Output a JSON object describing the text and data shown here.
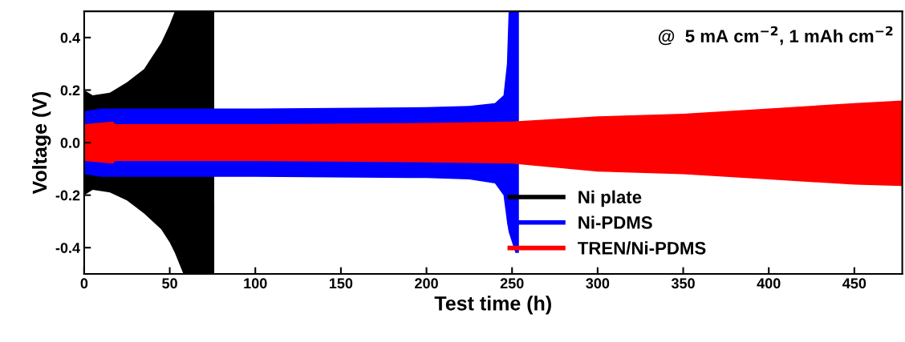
{
  "chart_data": {
    "type": "line",
    "xlabel": "Test time (h)",
    "ylabel": "Voltage (V)",
    "annotations": [
      "@  5 mA cm$^{−2}$, 1 mAh cm$^{−2}$"
    ],
    "xlim": [
      0,
      478
    ],
    "xticks": [
      0,
      50,
      100,
      150,
      200,
      250,
      300,
      350,
      400,
      450
    ],
    "ylim": [
      -0.5,
      0.5
    ],
    "yticks": [
      {
        "value": -0.4,
        "label": "-0.4"
      },
      {
        "value": -0.2,
        "label": "-0.2"
      },
      {
        "value": 0,
        "label": "0.0"
      },
      {
        "value": 0.2,
        "label": "0.2"
      },
      {
        "value": 0.4,
        "label": "0.4"
      }
    ],
    "grid": false,
    "legend": "bottom right",
    "series": [
      {
        "name": "Ni plate",
        "color": "#000000",
        "x": [
          0,
          5,
          15,
          25,
          35,
          45,
          50,
          53,
          58,
          76
        ],
        "values": [
          null,
          null,
          null,
          null,
          null,
          null,
          null,
          null,
          null,
          null
        ],
        "upper": [
          0.2,
          0.18,
          0.19,
          0.23,
          0.28,
          0.38,
          0.45,
          0.5,
          0.5,
          0.5
        ],
        "lower": [
          -0.2,
          -0.18,
          -0.19,
          -0.22,
          -0.27,
          -0.33,
          -0.38,
          -0.42,
          -0.5,
          -0.5
        ]
      },
      {
        "name": "Ni-PDMS",
        "color": "#0000ff",
        "x": [
          0,
          10,
          100,
          200,
          225,
          240,
          245,
          247,
          248,
          250,
          252,
          253,
          254
        ],
        "values": [
          null,
          null,
          null,
          null,
          null,
          null,
          null,
          null,
          null,
          null,
          null,
          null,
          null
        ],
        "upper": [
          0.12,
          0.13,
          0.13,
          0.135,
          0.14,
          0.15,
          0.18,
          0.3,
          0.5,
          0.5,
          0.5,
          0.5,
          0.5
        ],
        "lower": [
          -0.12,
          -0.13,
          -0.13,
          -0.135,
          -0.14,
          -0.155,
          -0.2,
          -0.3,
          -0.34,
          -0.38,
          -0.42,
          -0.42,
          -0.42
        ]
      },
      {
        "name": "TREN/Ni-PDMS",
        "color": "#ff0000",
        "x": [
          0,
          17,
          18,
          100,
          200,
          250,
          300,
          350,
          400,
          450,
          478
        ],
        "values": [
          null,
          null,
          null,
          null,
          null,
          null,
          null,
          null,
          null,
          null,
          null
        ],
        "upper": [
          0.07,
          0.08,
          0.07,
          0.07,
          0.075,
          0.08,
          0.1,
          0.11,
          0.13,
          0.15,
          0.16
        ],
        "lower": [
          -0.07,
          -0.08,
          -0.07,
          -0.07,
          -0.075,
          -0.08,
          -0.11,
          -0.12,
          -0.14,
          -0.16,
          -0.165
        ]
      }
    ]
  }
}
